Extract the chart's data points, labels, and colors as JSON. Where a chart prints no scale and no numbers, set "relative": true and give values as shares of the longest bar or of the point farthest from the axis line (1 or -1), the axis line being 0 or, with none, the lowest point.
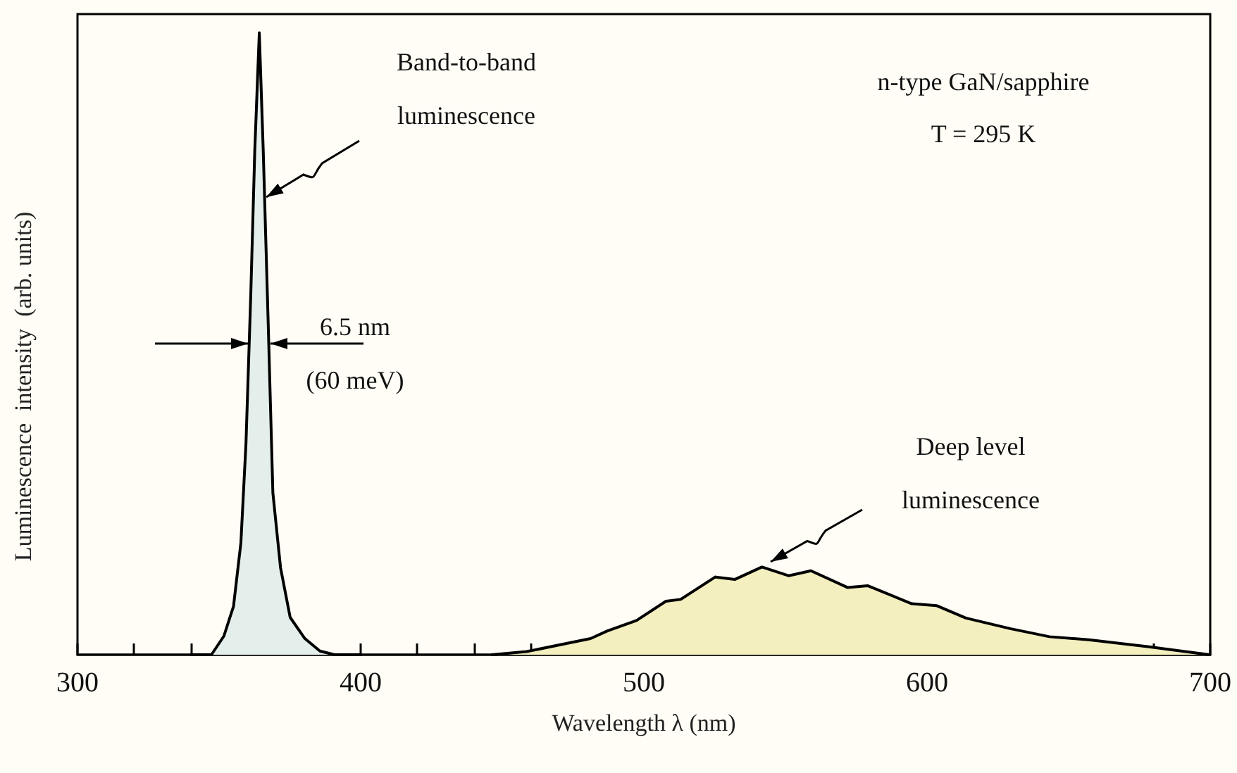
{
  "chart_data": {
    "type": "area",
    "relative": true,
    "xlabel": "Wavelength λ (nm)",
    "ylabel": "Luminescence  intensity  (arb. units)",
    "xlim": [
      300,
      700
    ],
    "xticks": [
      300,
      {
        "value": 320,
        "label": null
      },
      {
        "value": 340,
        "label": null
      },
      {
        "value": 360,
        "label": null
      },
      {
        "value": 380,
        "label": null
      },
      400,
      {
        "value": 420,
        "label": null
      },
      {
        "value": 440,
        "label": null
      },
      {
        "value": 460,
        "label": null
      },
      {
        "value": 480,
        "label": null
      },
      500,
      {
        "value": 520,
        "label": null
      },
      {
        "value": 540,
        "label": null
      },
      {
        "value": 560,
        "label": null
      },
      {
        "value": 580,
        "label": null
      },
      600,
      {
        "value": 620,
        "label": null
      },
      {
        "value": 640,
        "label": null
      },
      {
        "value": 660,
        "label": null
      },
      {
        "value": 680,
        "label": null
      },
      700
    ],
    "grid": false,
    "marker": "none",
    "line_style": "solid",
    "series": [
      {
        "color": "#e4efec",
        "x": [
          340,
          347.3,
          351.7,
          355.1,
          357.7,
          359.5,
          361.2,
          362.6,
          364.2,
          365.6,
          367.3,
          369.0,
          371.7,
          375.1,
          380.3,
          385.6,
          390.8,
          400
        ],
        "values": [
          0,
          0,
          0.03,
          0.078,
          0.18,
          0.34,
          0.58,
          0.81,
          1.0,
          0.81,
          0.54,
          0.26,
          0.14,
          0.06,
          0.026,
          0.006,
          0,
          0
        ]
      },
      {
        "color": "#f4efbf",
        "x": [
          446.4,
          458.6,
          481.2,
          487,
          497.4,
          507.8,
          513,
          525.2,
          532.1,
          541.7,
          551.2,
          559,
          572,
          579,
          594.6,
          603.3,
          613.7,
          629.3,
          643.2,
          657.1,
          677.9,
          699.7
        ],
        "values": [
          0,
          0.005,
          0.026,
          0.038,
          0.055,
          0.086,
          0.089,
          0.125,
          0.121,
          0.141,
          0.127,
          0.135,
          0.108,
          0.111,
          0.082,
          0.079,
          0.059,
          0.042,
          0.029,
          0.024,
          0.013,
          0
        ]
      }
    ],
    "annotations": [
      "Band-to-band\nluminescence",
      "6.5 nm\n(60 meV)",
      "Deep level\nluminescence",
      "n-type GaN/sapphire",
      "T = 295 K"
    ]
  }
}
